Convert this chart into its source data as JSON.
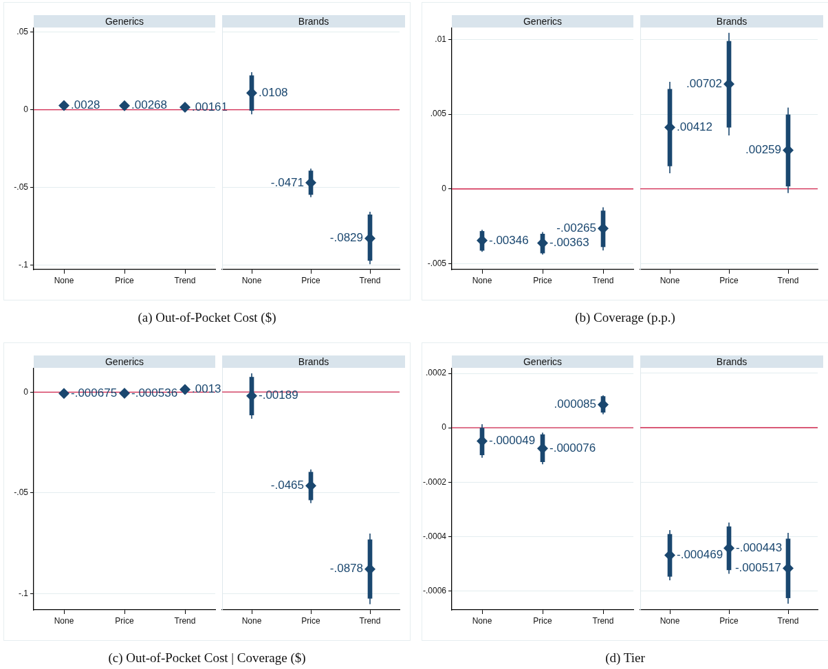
{
  "chart_data": [
    {
      "type": "scatter",
      "title": "Generics",
      "annotations": [
        "(a) Out-of-Pocket Cost ($)"
      ],
      "categories": [
        "None",
        "Price",
        "Trend"
      ],
      "ylim": [
        -0.103,
        0.053
      ],
      "yticks": [
        {
          "value": -0.1,
          "label": "-.1"
        },
        {
          "value": -0.05,
          "label": "-.05"
        },
        {
          "value": 0,
          "label": "0"
        },
        {
          "value": 0.05,
          "label": ".05"
        }
      ],
      "grid": "y",
      "marker": "diamond",
      "ref_lines": [
        {
          "axis": "y",
          "value": 0,
          "color": "#d0234b"
        }
      ],
      "series": [
        {
          "color": "#1a476f",
          "values": [
            0.0028,
            0.00268,
            0.00161
          ],
          "value_labels": [
            ".0028",
            ".00268",
            ".00161"
          ]
        }
      ]
    },
    {
      "type": "scatter",
      "title": "Brands",
      "categories": [
        "None",
        "Price",
        "Trend"
      ],
      "ylim": [
        -0.103,
        0.053
      ],
      "yticks": [
        {
          "value": -0.1,
          "label": null
        },
        {
          "value": -0.05,
          "label": null
        },
        {
          "value": 0,
          "label": null
        },
        {
          "value": 0.05,
          "label": null
        }
      ],
      "tick_labels": "x",
      "grid": "y",
      "marker": "diamond",
      "ref_lines": [
        {
          "axis": "y",
          "value": 0,
          "color": "#d0234b"
        }
      ],
      "series": [
        {
          "type": "bar",
          "color": "#1a476f",
          "base": [
            -0.0005,
            -0.0547,
            -0.0972
          ],
          "values": [
            0.0225,
            0.0153,
            0.0295
          ]
        },
        {
          "color": "#1a476f",
          "values": [
            0.0108,
            -0.0471,
            -0.0829
          ],
          "errors": [
            [
              -0.0029,
              0.0242
            ],
            [
              -0.0563,
              -0.038
            ],
            [
              -0.0996,
              -0.0658
            ]
          ],
          "value_labels": [
            ".0108",
            "-.0471",
            "-.0829"
          ]
        }
      ]
    },
    {
      "type": "scatter",
      "title": "Generics",
      "annotations": [
        "(b) Coverage (p.p.)"
      ],
      "categories": [
        "None",
        "Price",
        "Trend"
      ],
      "ylim": [
        -0.0054,
        0.0108
      ],
      "yticks": [
        {
          "value": -0.005,
          "label": "-.005"
        },
        {
          "value": 0,
          "label": "0"
        },
        {
          "value": 0.005,
          "label": ".005"
        },
        {
          "value": 0.01,
          "label": ".01"
        }
      ],
      "grid": "y",
      "marker": "diamond",
      "ref_lines": [
        {
          "axis": "y",
          "value": 0,
          "color": "#d0234b"
        }
      ],
      "series": [
        {
          "type": "bar",
          "color": "#1a476f",
          "base": [
            -0.00412,
            -0.0043,
            -0.00388
          ],
          "values": [
            0.00128,
            0.00128,
            0.00241
          ]
        },
        {
          "color": "#1a476f",
          "values": [
            -0.00346,
            -0.00363,
            -0.00265
          ],
          "errors": [
            [
              -0.00421,
              -0.00274
            ],
            [
              -0.0044,
              -0.00289
            ],
            [
              -0.00412,
              -0.00123
            ]
          ],
          "value_labels": [
            "-.00346",
            "-.00363",
            "-.00265"
          ]
        }
      ]
    },
    {
      "type": "scatter",
      "title": "Brands",
      "categories": [
        "None",
        "Price",
        "Trend"
      ],
      "ylim": [
        -0.0054,
        0.0108
      ],
      "yticks": [
        {
          "value": -0.005,
          "label": null
        },
        {
          "value": 0,
          "label": null
        },
        {
          "value": 0.005,
          "label": null
        },
        {
          "value": 0.01,
          "label": null
        }
      ],
      "tick_labels": "x",
      "grid": "y",
      "marker": "diamond",
      "ref_lines": [
        {
          "axis": "y",
          "value": 0,
          "color": "#d0234b"
        }
      ],
      "series": [
        {
          "type": "bar",
          "color": "#1a476f",
          "base": [
            0.00153,
            0.00412,
            0.00018
          ],
          "values": [
            0.00514,
            0.00576,
            0.00478
          ]
        },
        {
          "color": "#1a476f",
          "values": [
            0.00412,
            0.00702,
            0.00259
          ],
          "errors": [
            [
              0.00104,
              0.00716
            ],
            [
              0.00358,
              0.01044
            ],
            [
              -0.00028,
              0.00544
            ]
          ],
          "value_labels": [
            ".00412",
            ".00702",
            ".00259"
          ]
        }
      ]
    },
    {
      "type": "scatter",
      "title": "Generics",
      "annotations": [
        "(c) Out-of-Pocket Cost | Coverage ($)"
      ],
      "categories": [
        "None",
        "Price",
        "Trend"
      ],
      "ylim": [
        -0.108,
        0.012
      ],
      "yticks": [
        {
          "value": -0.1,
          "label": "-.1"
        },
        {
          "value": -0.05,
          "label": "-.05"
        },
        {
          "value": 0,
          "label": "0"
        }
      ],
      "grid": "y",
      "marker": "diamond",
      "ref_lines": [
        {
          "axis": "y",
          "value": 0,
          "color": "#d0234b"
        }
      ],
      "series": [
        {
          "color": "#1a476f",
          "values": [
            -0.000675,
            -0.000536,
            0.0013
          ],
          "value_labels": [
            "-.000675",
            "-.000536",
            ".0013"
          ]
        }
      ]
    },
    {
      "type": "scatter",
      "title": "Brands",
      "categories": [
        "None",
        "Price",
        "Trend"
      ],
      "ylim": [
        -0.108,
        0.012
      ],
      "yticks": [
        {
          "value": -0.1,
          "label": null
        },
        {
          "value": -0.05,
          "label": null
        },
        {
          "value": 0,
          "label": null
        }
      ],
      "tick_labels": "x",
      "grid": "y",
      "marker": "diamond",
      "ref_lines": [
        {
          "axis": "y",
          "value": 0,
          "color": "#d0234b"
        }
      ],
      "series": [
        {
          "type": "bar",
          "color": "#1a476f",
          "base": [
            -0.0114,
            -0.0535,
            -0.1023
          ],
          "values": [
            0.0188,
            0.0138,
            0.0291
          ]
        },
        {
          "color": "#1a476f",
          "values": [
            -0.00189,
            -0.0465,
            -0.0878
          ],
          "errors": [
            [
              -0.0132,
              0.0093
            ],
            [
              -0.0551,
              -0.0384
            ],
            [
              -0.1052,
              -0.0702
            ]
          ],
          "value_labels": [
            "-.00189",
            "-.0465",
            "-.0878"
          ]
        }
      ]
    },
    {
      "type": "scatter",
      "title": "Generics",
      "annotations": [
        "(d) Tier"
      ],
      "categories": [
        "None",
        "Price",
        "Trend"
      ],
      "ylim": [
        -0.00067,
        0.00022
      ],
      "yticks": [
        {
          "value": -0.0006,
          "label": "-.0006"
        },
        {
          "value": -0.0004,
          "label": "-.0004"
        },
        {
          "value": -0.0002,
          "label": "-.0002"
        },
        {
          "value": 0,
          "label": "0"
        },
        {
          "value": 0.0002,
          "label": ".0002"
        }
      ],
      "grid": "y",
      "marker": "diamond",
      "ref_lines": [
        {
          "axis": "y",
          "value": 0,
          "color": "#d0234b"
        }
      ],
      "series": [
        {
          "type": "bar",
          "color": "#1a476f",
          "base": [
            -0.0001,
            -0.000125,
            5.7e-05
          ],
          "values": [
            0.0001,
            0.0001,
            5.8e-05
          ]
        },
        {
          "color": "#1a476f",
          "values": [
            -4.9e-05,
            -7.6e-05,
            8.5e-05
          ],
          "errors": [
            [
              -0.00011,
              1.3e-05
            ],
            [
              -0.000134,
              -1.8e-05
            ],
            [
              5e-05,
              0.000119
            ]
          ],
          "value_labels": [
            "-.000049",
            "-.000076",
            ".000085"
          ]
        }
      ]
    },
    {
      "type": "scatter",
      "title": "Brands",
      "categories": [
        "None",
        "Price",
        "Trend"
      ],
      "ylim": [
        -0.00067,
        0.00022
      ],
      "yticks": [
        {
          "value": -0.0006,
          "label": null
        },
        {
          "value": -0.0004,
          "label": null
        },
        {
          "value": -0.0002,
          "label": null
        },
        {
          "value": 0,
          "label": null
        },
        {
          "value": 0.0002,
          "label": null
        }
      ],
      "tick_labels": "x",
      "grid": "y",
      "marker": "diamond",
      "ref_lines": [
        {
          "axis": "y",
          "value": 0,
          "color": "#d0234b"
        }
      ],
      "series": [
        {
          "type": "bar",
          "color": "#1a476f",
          "base": [
            -0.000547,
            -0.000523,
            -0.000626
          ],
          "values": [
            0.000155,
            0.000159,
            0.000217
          ]
        },
        {
          "color": "#1a476f",
          "values": [
            -0.000469,
            -0.000443,
            -0.000517
          ],
          "errors": [
            [
              -0.000561,
              -0.000377
            ],
            [
              -0.000537,
              -0.000349
            ],
            [
              -0.000647,
              -0.000387
            ]
          ],
          "value_labels": [
            "-.000469",
            "-.000443",
            "-.000517"
          ]
        }
      ]
    }
  ]
}
